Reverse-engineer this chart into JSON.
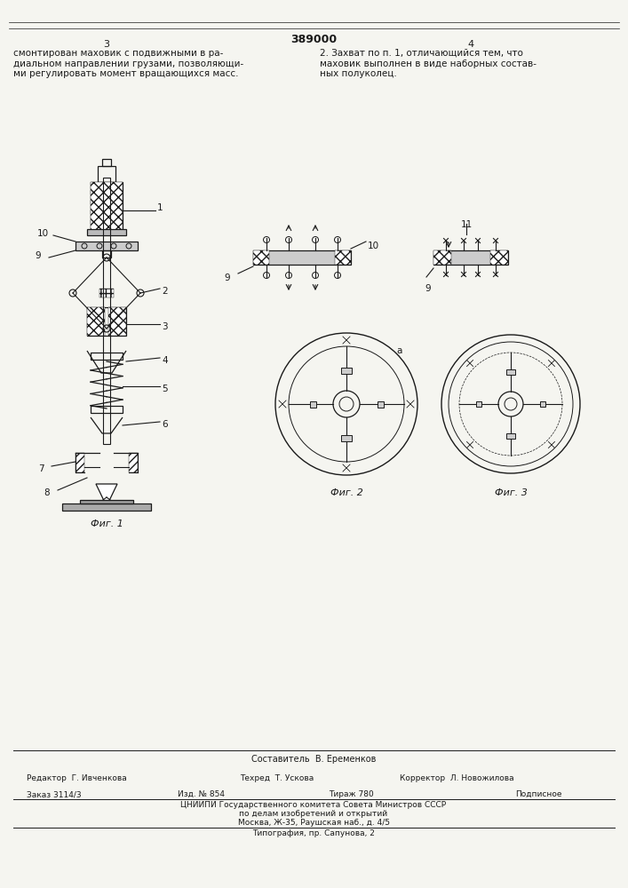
{
  "title": "389000",
  "page_left": "3",
  "page_right": "4",
  "text_left": "смонтирован маховик с подвижными в ра-\nдиальном направлении грузами, позволяющи-\nми регулировать момент вращающихся масс.",
  "text_right": "2. Захват по п. 1, отличающийся тем, что\nмаховик выполнен в виде наборных состав-\nных полуколец.",
  "fig1_label": "Фиг. 1",
  "fig2_label": "Фиг. 2",
  "fig3_label": "Фиг. 3",
  "bottom_line1": "Составитель  В. Еременков",
  "bottom_line2_left": "Редактор  Г. Ивченкова",
  "bottom_line2_mid": "Техред  Т. Ускова",
  "bottom_line2_right": "Корректор  Л. Новожилова",
  "bottom_line3_zakas": "Заказ 3114/3",
  "bottom_line3_izd": "Изд. № 854",
  "bottom_line3_tirazh": "Тираж 780",
  "bottom_line3_podp": "Подписное",
  "bottom_line4": "ЦНИИПИ Государственного комитета Совета Министров СССР",
  "bottom_line5": "по делам изобретений и открытий",
  "bottom_line6": "Москва, Ж-35, Раушская наб., д. 4/5",
  "bottom_line7": "Типография, пр. Сапунова, 2",
  "bg_color": "#f5f5f0",
  "line_color": "#1a1a1a"
}
